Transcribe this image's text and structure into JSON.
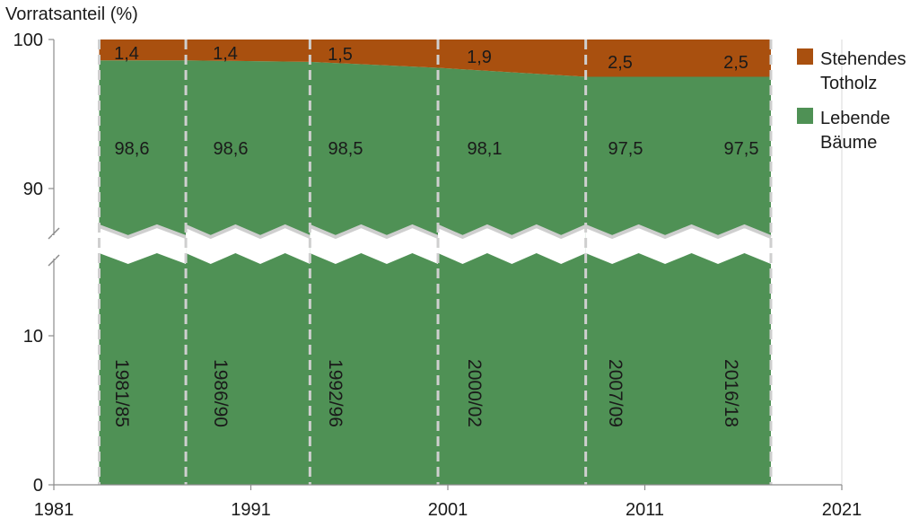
{
  "colors": {
    "living": "#4f9155",
    "deadwood": "#a9500f",
    "gridline": "#d9d9d9",
    "axis": "#8c8c8c",
    "period_line": "#cfcfcf",
    "break_band": "#cfcfcf"
  },
  "chart_data": {
    "type": "area",
    "title": "",
    "ylabel": "Vorratsanteil (%)",
    "xlabel": "",
    "xlim": [
      1981,
      2021
    ],
    "x_ticks": [
      "1981",
      "1991",
      "2001",
      "2011",
      "2021"
    ],
    "y_ticks": [
      "0",
      "10",
      "90",
      "100"
    ],
    "y_axis_break": true,
    "legend_position": "right",
    "grid": true,
    "inventory_periods": [
      {
        "label": "1981/85",
        "start": 1983.3,
        "end": 1987.7
      },
      {
        "label": "1986/90",
        "start": 1987.7,
        "end": 1994.0
      },
      {
        "label": "1992/96",
        "start": 1994.0,
        "end": 2000.5
      },
      {
        "label": "2000/02",
        "start": 2000.5,
        "end": 2008.0
      },
      {
        "label": "2007/09",
        "start": 2008.0,
        "end": 2017.4
      },
      {
        "label": "2016/18",
        "start": 2008.0,
        "end": 2017.4
      }
    ],
    "x": [
      1983.3,
      1987.7,
      1994.0,
      2000.5,
      2008.0,
      2017.4
    ],
    "series": [
      {
        "name": "Lebende Bäume",
        "color": "#4f9155",
        "values": [
          98.6,
          98.6,
          98.5,
          98.1,
          97.5,
          97.5
        ],
        "labels": [
          "98,6",
          "98,6",
          "98,5",
          "98,1",
          "97,5",
          "97,5"
        ]
      },
      {
        "name": "Stehendes Totholz",
        "color": "#a9500f",
        "values": [
          1.4,
          1.4,
          1.5,
          1.9,
          2.5,
          2.5
        ],
        "labels": [
          "1,4",
          "1,4",
          "1,5",
          "1,9",
          "2,5",
          "2,5"
        ]
      }
    ],
    "legend": [
      {
        "lines": [
          "Stehendes",
          "Totholz"
        ],
        "color": "#a9500f"
      },
      {
        "lines": [
          "Lebende",
          "Bäume"
        ],
        "color": "#4f9155"
      }
    ]
  }
}
